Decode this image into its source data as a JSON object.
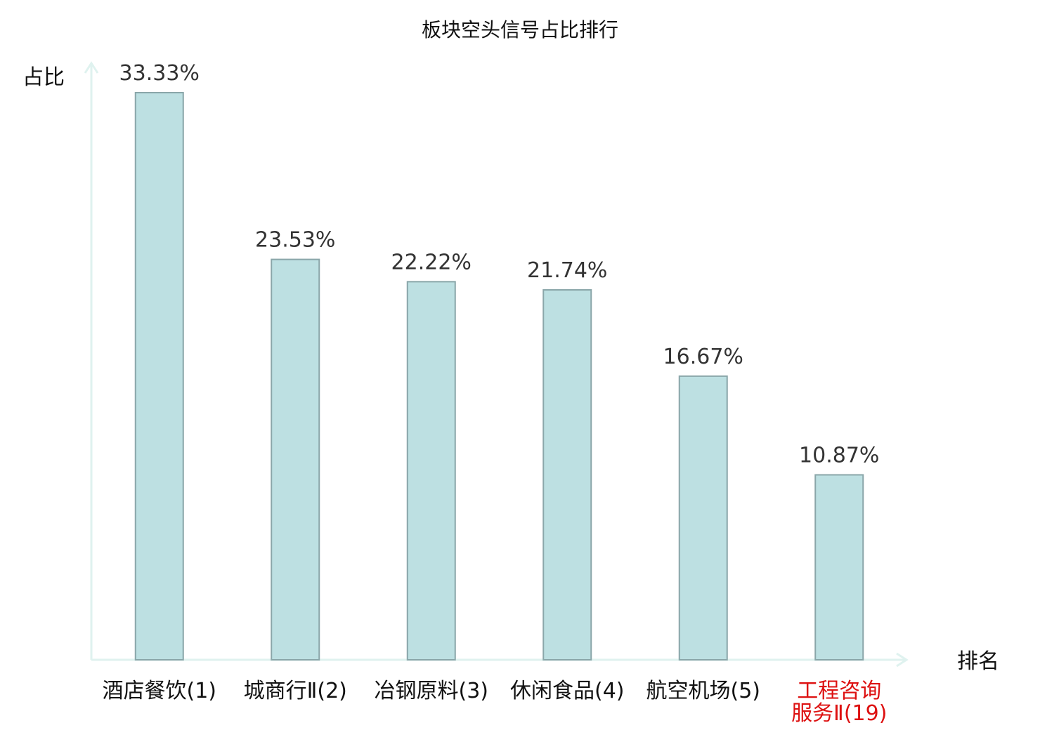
{
  "chart_data": {
    "type": "bar",
    "title": "板块空头信号占比排行",
    "ylabel": "占比",
    "xlabel": "排名",
    "categories": [
      [
        "酒店餐饮(1)"
      ],
      [
        "城商行Ⅱ(2)"
      ],
      [
        "冶钢原料(3)"
      ],
      [
        "休闲食品(4)"
      ],
      [
        "航空机场(5)"
      ],
      [
        "工程咨询",
        "服务Ⅱ(19)"
      ]
    ],
    "values": [
      33.33,
      23.53,
      22.22,
      21.74,
      16.67,
      10.87
    ],
    "value_labels": [
      "33.33%",
      "23.53%",
      "22.22%",
      "21.74%",
      "16.67%",
      "10.87%"
    ],
    "highlight_index": 5,
    "ylim": [
      0,
      35
    ],
    "grid": false,
    "colors": {
      "bar_fill": "#bde0e2",
      "bar_stroke": "#8aa6a9",
      "axis": "#dff2ef",
      "label": "#111111",
      "value_label": "#333333",
      "highlight": "#dd1111"
    }
  }
}
